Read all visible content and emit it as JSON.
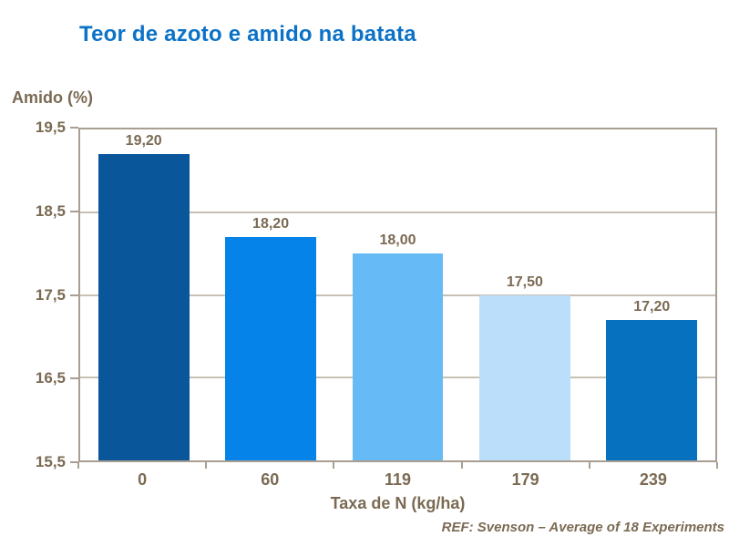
{
  "header": {
    "title": "Teor de azoto e amido na batata",
    "title_color": "#0C72C7"
  },
  "chart_data": {
    "type": "bar",
    "title": "Teor de azoto e amido na batata",
    "categories": [
      "0",
      "60",
      "119",
      "179",
      "239"
    ],
    "values": [
      19.2,
      18.2,
      18.0,
      17.5,
      17.2
    ],
    "value_labels": [
      "19,20",
      "18,20",
      "18,00",
      "17,50",
      "17,20"
    ],
    "bar_colors": [
      "#0A569B",
      "#0583E8",
      "#66BAF5",
      "#BBDEFB",
      "#0571BF"
    ],
    "xlabel": "Taxa de N (kg/ha)",
    "ylabel": "Amido (%)",
    "ylim": [
      15.5,
      19.5
    ],
    "yticks": [
      19.5,
      18.5,
      17.5,
      16.5,
      15.5
    ],
    "ytick_labels": [
      "19,5",
      "18,5",
      "17,5",
      "16,5",
      "15,5"
    ],
    "grid": "horizontal-inner",
    "legend": "none",
    "text_color": "#7A6A53",
    "axis_color": "#A89E91",
    "gridline_color": "#C8C0B4"
  },
  "footer": {
    "ref": "REF: Svenson – Average of 18 Experiments"
  }
}
